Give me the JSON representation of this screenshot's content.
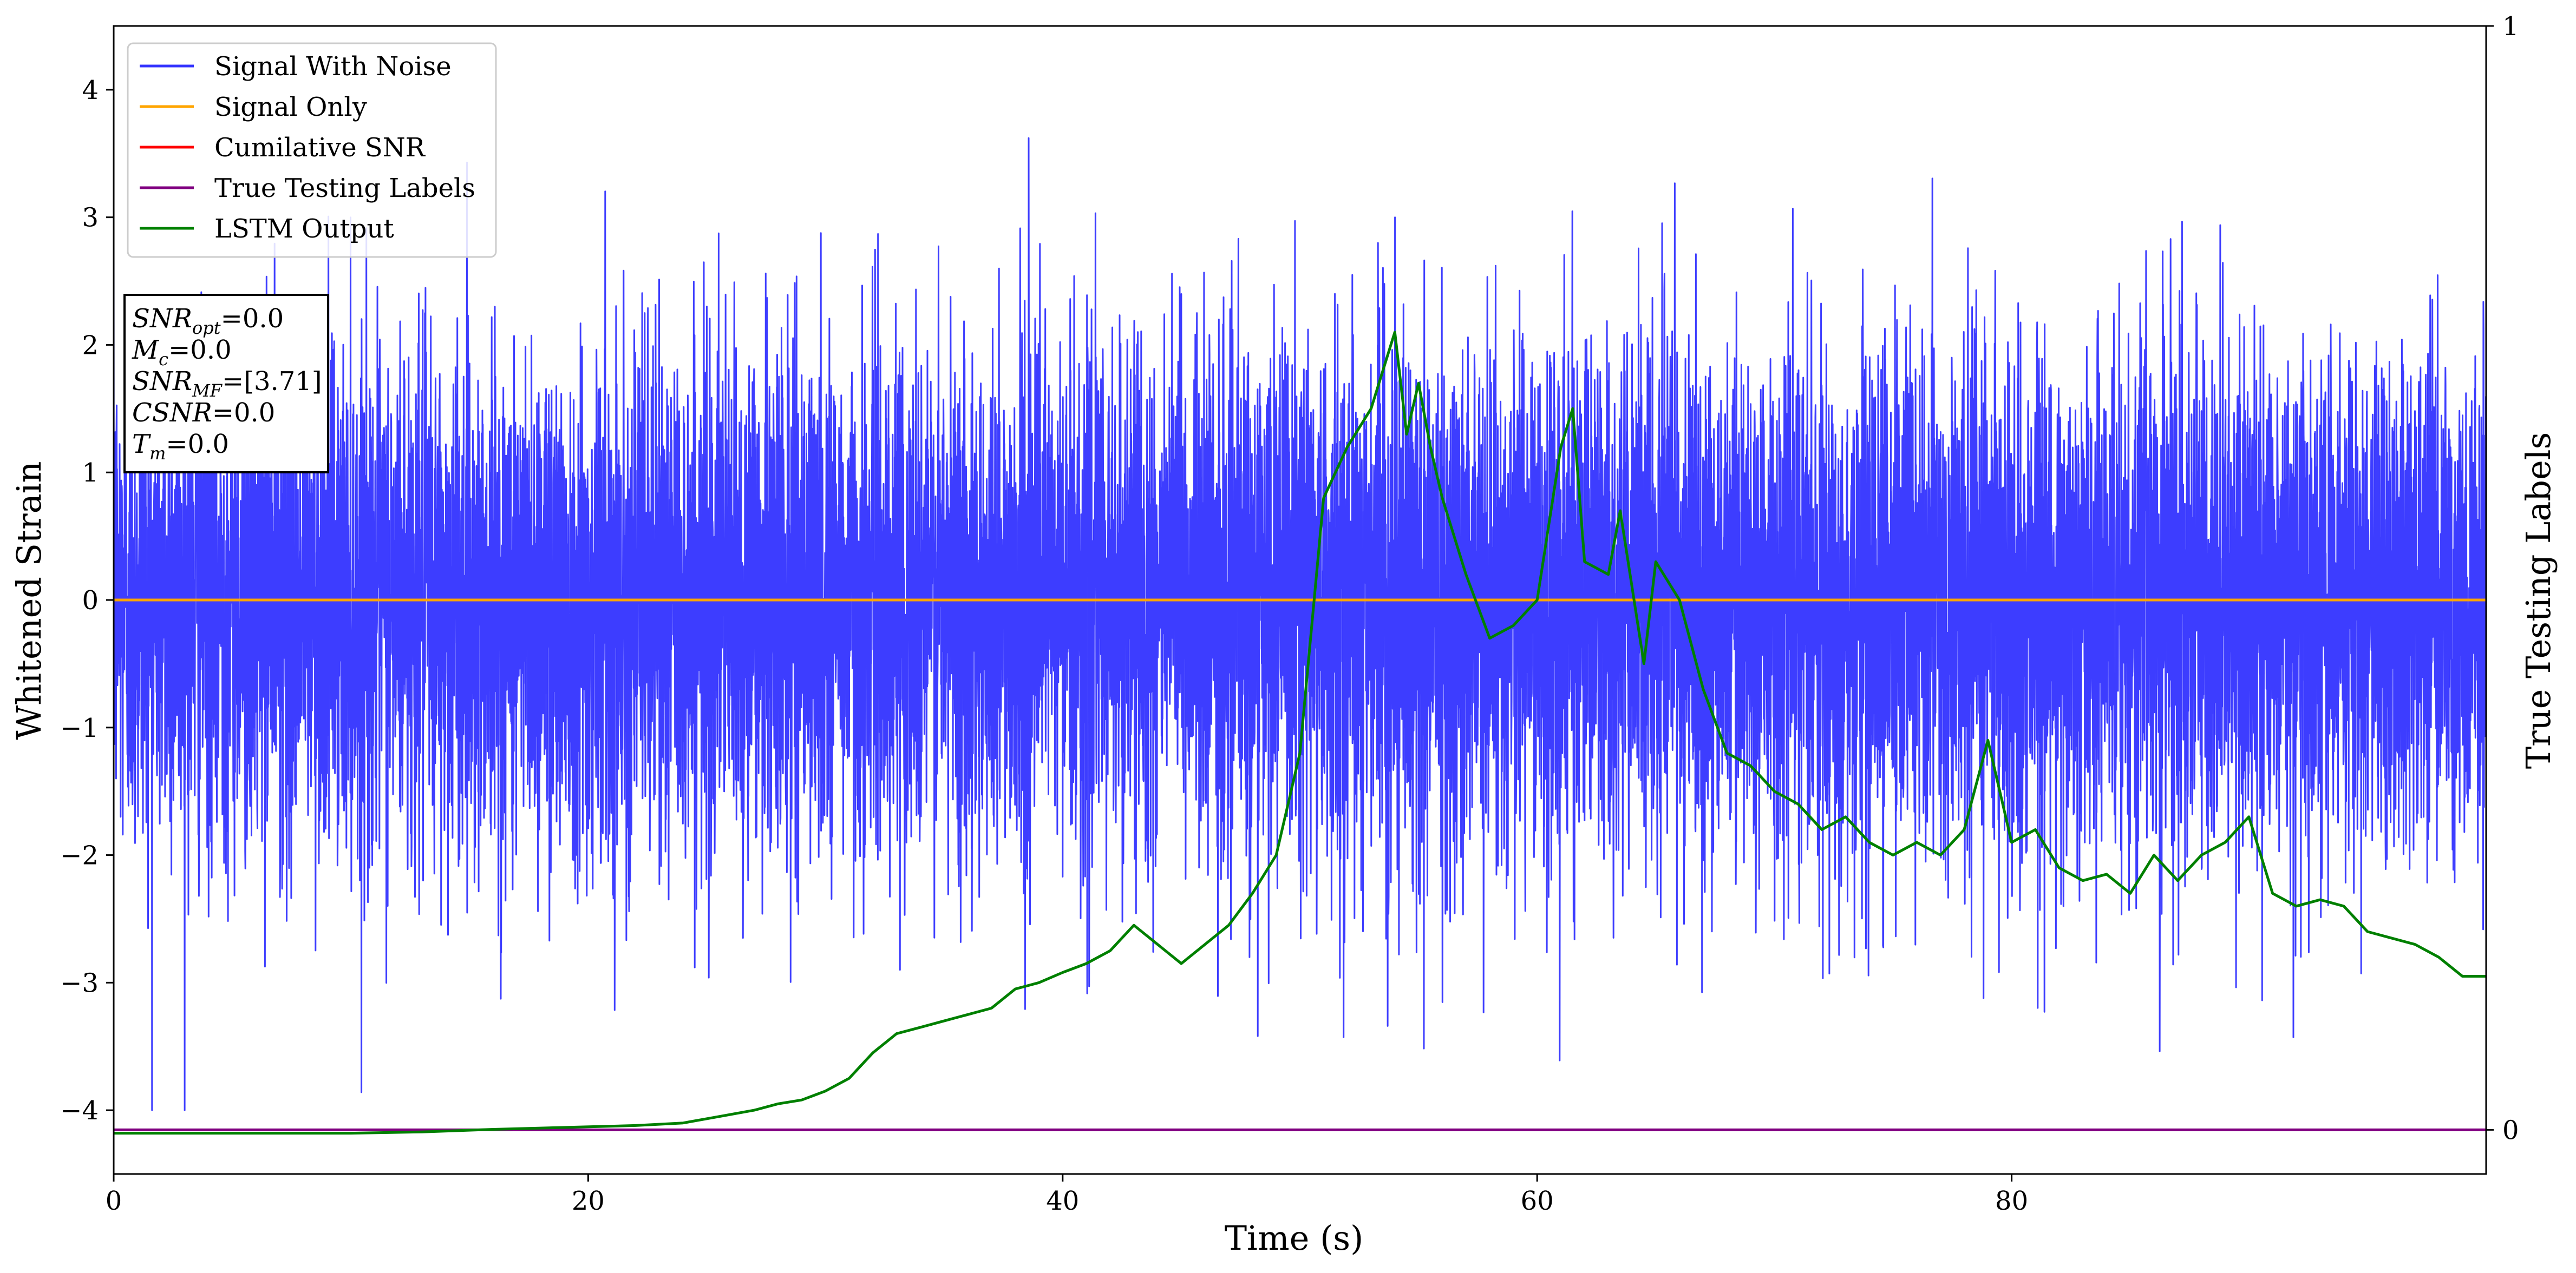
{
  "chart_data": {
    "type": "line",
    "xlabel": "Time (s)",
    "ylabel": "Whitened Strain",
    "y2label": "True Testing Labels",
    "xlim": [
      0,
      100
    ],
    "ylim": [
      -4.5,
      4.5
    ],
    "y2lim": [
      -0.04,
      1.0
    ],
    "xticks": [
      "0",
      "20",
      "40",
      "60",
      "80"
    ],
    "yticks": [
      "4",
      "3",
      "2",
      "1",
      "0",
      "−1",
      "−2",
      "−3",
      "−4"
    ],
    "y2ticks": [
      "1",
      "0"
    ],
    "grid": false,
    "legend_position": "top-left",
    "legend": [
      {
        "name": "Signal With Noise",
        "color": "#3333ff"
      },
      {
        "name": "Signal Only",
        "color": "#ffa500"
      },
      {
        "name": "Cumilative SNR",
        "color": "#ff0000"
      },
      {
        "name": "True Testing Labels",
        "color": "#800080"
      },
      {
        "name": "LSTM Output",
        "color": "#008000"
      }
    ],
    "series": [
      {
        "name": "Signal With Noise",
        "axis": "left",
        "color": "#3333ff",
        "style": "dense-noise",
        "mean": 0.0,
        "std": 1.0,
        "range": [
          -4.0,
          4.1
        ],
        "x_range": [
          0,
          100
        ]
      },
      {
        "name": "Signal Only",
        "axis": "left",
        "color": "#ffa500",
        "x": [
          0,
          100
        ],
        "y": [
          0,
          0
        ]
      },
      {
        "name": "True Testing Labels",
        "axis": "right",
        "color": "#800080",
        "x": [
          0,
          100
        ],
        "y": [
          0,
          0
        ]
      },
      {
        "name": "LSTM Output",
        "axis": "left",
        "color": "#008000",
        "x": [
          0,
          10,
          13,
          16,
          18,
          20,
          22,
          24,
          25.5,
          27,
          28,
          29,
          30,
          31,
          32,
          33,
          34,
          35,
          36,
          37,
          38,
          39,
          40,
          41,
          42,
          43,
          44,
          45,
          46,
          47,
          48,
          49,
          50,
          51,
          52,
          53,
          54,
          54.5,
          55,
          55.5,
          56,
          57,
          58,
          59,
          60,
          61,
          61.5,
          62,
          63,
          63.5,
          64,
          64.5,
          65,
          66,
          67,
          68,
          69,
          70,
          71,
          72,
          73,
          74,
          75,
          76,
          77,
          78,
          79,
          80,
          81,
          82,
          83,
          84,
          85,
          86,
          87,
          88,
          89,
          90,
          91,
          92,
          93,
          94,
          95,
          96,
          97,
          98,
          99,
          100
        ],
        "y": [
          -4.18,
          -4.18,
          -4.17,
          -4.15,
          -4.14,
          -4.13,
          -4.12,
          -4.1,
          -4.05,
          -4.0,
          -3.95,
          -3.92,
          -3.85,
          -3.75,
          -3.55,
          -3.4,
          -3.35,
          -3.3,
          -3.25,
          -3.2,
          -3.05,
          -3.0,
          -2.92,
          -2.85,
          -2.75,
          -2.55,
          -2.7,
          -2.85,
          -2.7,
          -2.55,
          -2.3,
          -2.0,
          -1.2,
          0.8,
          1.2,
          1.5,
          2.1,
          1.3,
          1.7,
          1.2,
          0.8,
          0.2,
          -0.3,
          -0.2,
          0.0,
          1.2,
          1.5,
          0.3,
          0.2,
          0.7,
          0.1,
          -0.5,
          0.3,
          0.0,
          -0.7,
          -1.2,
          -1.3,
          -1.5,
          -1.6,
          -1.8,
          -1.7,
          -1.9,
          -2.0,
          -1.9,
          -2.0,
          -1.8,
          -1.1,
          -1.9,
          -1.8,
          -2.1,
          -2.2,
          -2.15,
          -2.3,
          -2.0,
          -2.2,
          -2.0,
          -1.9,
          -1.7,
          -2.3,
          -2.4,
          -2.35,
          -2.4,
          -2.6,
          -2.65,
          -2.7,
          -2.8,
          -2.95,
          -2.95
        ]
      }
    ],
    "annotation_box": {
      "lines": [
        {
          "base": "SNR",
          "sub": "opt",
          "rest": "=0.0"
        },
        {
          "base": "M",
          "sub": "c",
          "rest": "=0.0"
        },
        {
          "base": "SNR",
          "sub": "MF",
          "rest": "=[3.71]"
        },
        {
          "base": "CSNR",
          "sub": "",
          "rest": "=0.0"
        },
        {
          "base": "T",
          "sub": "m",
          "rest": "=0.0"
        }
      ]
    }
  }
}
